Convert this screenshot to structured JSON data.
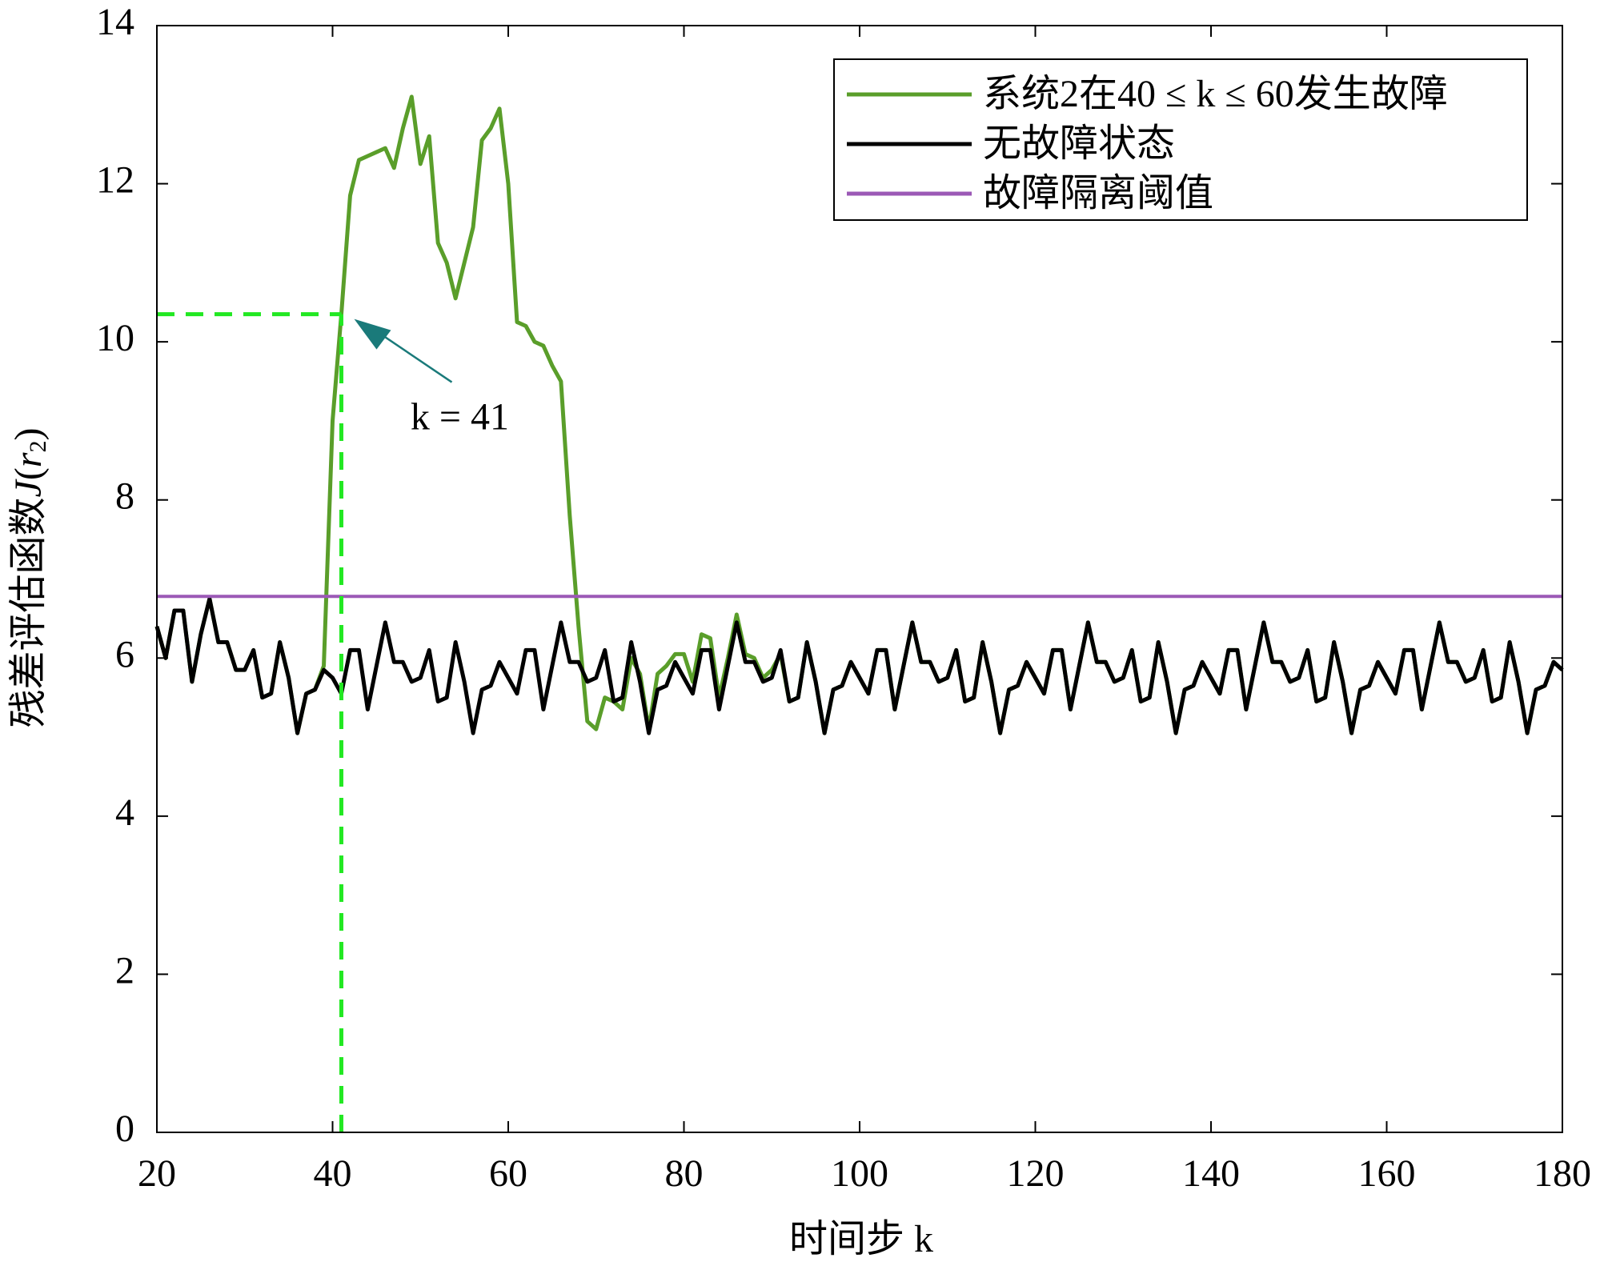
{
  "chart_data": {
    "type": "line",
    "xlabel": "时间步 k",
    "ylabel": [
      "残差评估函数",
      "J",
      "(",
      "r",
      "2",
      ")"
    ],
    "x": [
      20,
      21,
      22,
      23,
      24,
      25,
      26,
      27,
      28,
      29,
      30,
      31,
      32,
      33,
      34,
      35,
      36,
      37,
      38,
      39,
      40,
      41,
      42,
      43,
      44,
      45,
      46,
      47,
      48,
      49,
      50,
      51,
      52,
      53,
      54,
      55,
      56,
      57,
      58,
      59,
      60,
      61,
      62,
      63,
      64,
      65,
      66,
      67,
      68,
      69,
      70,
      71,
      72,
      73,
      74,
      75,
      76,
      77,
      78,
      79,
      80,
      81,
      82,
      83,
      84,
      85,
      86,
      87,
      88,
      89,
      90,
      91,
      92,
      93,
      94,
      95,
      96,
      97,
      98,
      99,
      100,
      101,
      102,
      103,
      104,
      105,
      106,
      107,
      108,
      109,
      110,
      111,
      112,
      113,
      114,
      115,
      116,
      117,
      118,
      119,
      120,
      121,
      122,
      123,
      124,
      125,
      126,
      127,
      128,
      129,
      130,
      131,
      132,
      133,
      134,
      135,
      136,
      137,
      138,
      139,
      140,
      141,
      142,
      143,
      144,
      145,
      146,
      147,
      148,
      149,
      150,
      151,
      152,
      153,
      154,
      155,
      156,
      157,
      158,
      159,
      160,
      161,
      162,
      163,
      164,
      165,
      166,
      167,
      168,
      169,
      170,
      171,
      172,
      173,
      174,
      175,
      176,
      177,
      178,
      179,
      180
    ],
    "series": [
      {
        "name": "系统2在40 ≤ k ≤ 60发生故障",
        "color": "#5a9e2a",
        "values": [
          6.4,
          6.0,
          6.6,
          6.6,
          5.7,
          6.3,
          6.75,
          6.2,
          6.2,
          5.85,
          5.85,
          6.1,
          5.5,
          5.55,
          6.2,
          5.75,
          5.05,
          5.55,
          5.6,
          5.9,
          9.0,
          10.35,
          11.85,
          12.3,
          12.35,
          12.4,
          12.45,
          12.2,
          12.7,
          13.1,
          12.25,
          12.6,
          11.25,
          11.0,
          10.55,
          11.0,
          11.45,
          12.55,
          12.7,
          12.95,
          12.0,
          10.25,
          10.2,
          10.0,
          9.95,
          9.7,
          9.5,
          7.8,
          6.4,
          5.2,
          5.1,
          5.5,
          5.45,
          5.35,
          6.0,
          5.8,
          5.1,
          5.8,
          5.9,
          6.05,
          6.05,
          5.7,
          6.3,
          6.25,
          5.5,
          6.0,
          6.55,
          6.05,
          6.0,
          5.75,
          5.85,
          6.05,
          5.45,
          5.5,
          6.2,
          5.7,
          5.05,
          5.6,
          5.65,
          5.95,
          5.75,
          5.55,
          6.1,
          6.1,
          5.35,
          5.9,
          6.45,
          5.95,
          5.95,
          5.7,
          5.75,
          6.1,
          5.45,
          5.5,
          6.2,
          5.7,
          5.05,
          5.6,
          5.65,
          5.95,
          5.75,
          5.55,
          6.1,
          6.1,
          5.35,
          5.9,
          6.45,
          5.95,
          5.95,
          5.7,
          5.75,
          6.1,
          5.45,
          5.5,
          6.2,
          5.7,
          5.05,
          5.6,
          5.65,
          5.95,
          5.75,
          5.55,
          6.1,
          6.1,
          5.35,
          5.9,
          6.45,
          5.95,
          5.95,
          5.7,
          5.75,
          6.1,
          5.45,
          5.5,
          6.2,
          5.7,
          5.05,
          5.6,
          5.65,
          5.95,
          5.75,
          5.55,
          6.1,
          6.1,
          5.35,
          5.9,
          6.45,
          5.95,
          5.95,
          5.7,
          5.75,
          6.1,
          5.45,
          5.5,
          6.2,
          5.7,
          5.05,
          5.6,
          5.65,
          5.95,
          5.85
        ]
      },
      {
        "name": "无故障状态",
        "color": "#000000",
        "values": [
          6.4,
          6.0,
          6.6,
          6.6,
          5.7,
          6.3,
          6.75,
          6.2,
          6.2,
          5.85,
          5.85,
          6.1,
          5.5,
          5.55,
          6.2,
          5.75,
          5.05,
          5.55,
          5.6,
          5.85,
          5.75,
          5.55,
          6.1,
          6.1,
          5.35,
          5.9,
          6.45,
          5.95,
          5.95,
          5.7,
          5.75,
          6.1,
          5.45,
          5.5,
          6.2,
          5.7,
          5.05,
          5.6,
          5.65,
          5.95,
          5.75,
          5.55,
          6.1,
          6.1,
          5.35,
          5.9,
          6.45,
          5.95,
          5.95,
          5.7,
          5.75,
          6.1,
          5.45,
          5.5,
          6.2,
          5.7,
          5.05,
          5.6,
          5.65,
          5.95,
          5.75,
          5.55,
          6.1,
          6.1,
          5.35,
          5.9,
          6.45,
          5.95,
          5.95,
          5.7,
          5.75,
          6.1,
          5.45,
          5.5,
          6.2,
          5.7,
          5.05,
          5.6,
          5.65,
          5.95,
          5.75,
          5.55,
          6.1,
          6.1,
          5.35,
          5.9,
          6.45,
          5.95,
          5.95,
          5.7,
          5.75,
          6.1,
          5.45,
          5.5,
          6.2,
          5.7,
          5.05,
          5.6,
          5.65,
          5.95,
          5.75,
          5.55,
          6.1,
          6.1,
          5.35,
          5.9,
          6.45,
          5.95,
          5.95,
          5.7,
          5.75,
          6.1,
          5.45,
          5.5,
          6.2,
          5.7,
          5.05,
          5.6,
          5.65,
          5.95,
          5.75,
          5.55,
          6.1,
          6.1,
          5.35,
          5.9,
          6.45,
          5.95,
          5.95,
          5.7,
          5.75,
          6.1,
          5.45,
          5.5,
          6.2,
          5.7,
          5.05,
          5.6,
          5.65,
          5.95,
          5.75,
          5.55,
          6.1,
          6.1,
          5.35,
          5.9,
          6.45,
          5.95,
          5.95,
          5.7,
          5.75,
          6.1,
          5.45,
          5.5,
          6.2,
          5.7,
          5.05,
          5.6,
          5.65,
          5.95,
          5.85
        ]
      }
    ],
    "threshold": {
      "name": "故障隔离阈值",
      "color": "#9b59b6",
      "value": 6.78
    },
    "annotation": {
      "text": "k = 41",
      "x": 41,
      "y": 10.35,
      "color": "#22e822",
      "text_color": "#1a7a7a"
    },
    "xlim": [
      20,
      180
    ],
    "xticks": [
      20,
      40,
      60,
      80,
      100,
      120,
      140,
      160,
      180
    ],
    "ylim": [
      0,
      14
    ],
    "yticks": [
      0,
      2,
      4,
      6,
      8,
      10,
      12,
      14
    ],
    "legend": "upper right"
  }
}
